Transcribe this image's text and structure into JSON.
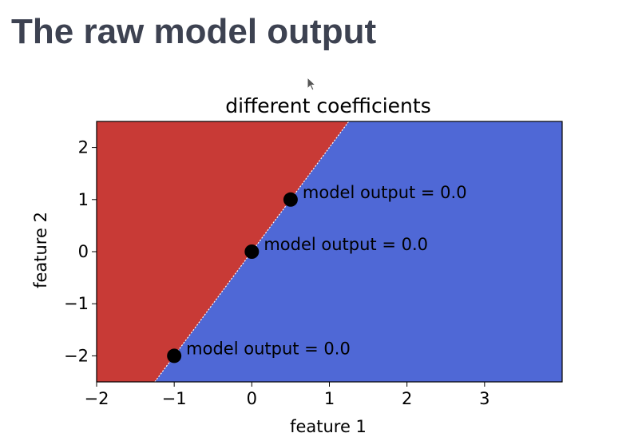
{
  "slide": {
    "title": "The raw model output"
  },
  "icons": {
    "cursor": "mouse-pointer-icon"
  },
  "colors": {
    "positive_region": "#c83a36",
    "negative_region": "#4f68d6",
    "boundary": "#ffffff",
    "point": "#000000",
    "title_text": "#3d4251"
  },
  "chart_data": {
    "type": "scatter",
    "title": "different coefficients",
    "xlabel": "feature 1",
    "ylabel": "feature 2",
    "xlim": [
      -2,
      4
    ],
    "ylim": [
      -2.5,
      2.5
    ],
    "xticks": [
      -2,
      -1,
      0,
      1,
      2,
      3
    ],
    "yticks": [
      -2,
      -1,
      0,
      1,
      2
    ],
    "xtick_labels": [
      "−2",
      "−1",
      "0",
      "1",
      "2",
      "3"
    ],
    "ytick_labels": [
      "−2",
      "−1",
      "0",
      "1",
      "2"
    ],
    "decision_boundary": {
      "slope": 2,
      "intercept": 0
    },
    "points": [
      {
        "x": 0.5,
        "y": 1,
        "label": "model output = 0.0"
      },
      {
        "x": 0,
        "y": 0,
        "label": "model output = 0.0"
      },
      {
        "x": -1,
        "y": -2,
        "label": "model output = 0.0"
      }
    ],
    "grid": false,
    "legend": "none"
  }
}
